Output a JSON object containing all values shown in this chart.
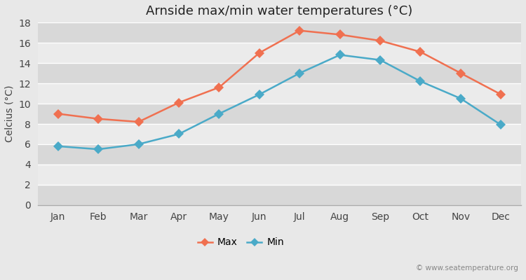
{
  "title": "Arnside max/min water temperatures (°C)",
  "ylabel": "Celcius (°C)",
  "months": [
    "Jan",
    "Feb",
    "Mar",
    "Apr",
    "May",
    "Jun",
    "Jul",
    "Aug",
    "Sep",
    "Oct",
    "Nov",
    "Dec"
  ],
  "max_values": [
    9.0,
    8.5,
    8.2,
    10.1,
    11.6,
    15.0,
    17.2,
    16.8,
    16.2,
    15.1,
    13.0,
    10.9
  ],
  "min_values": [
    5.8,
    5.5,
    6.0,
    7.0,
    9.0,
    10.9,
    13.0,
    14.8,
    14.3,
    12.2,
    10.5,
    7.9
  ],
  "max_color": "#f07050",
  "min_color": "#4aaac8",
  "marker_style": "D",
  "marker_size": 7,
  "line_width": 1.8,
  "ylim": [
    0,
    18
  ],
  "yticks": [
    0,
    2,
    4,
    6,
    8,
    10,
    12,
    14,
    16,
    18
  ],
  "bg_color": "#e8e8e8",
  "band_light": "#ebebeb",
  "band_dark": "#d8d8d8",
  "grid_color": "#ffffff",
  "legend_labels": [
    "Max",
    "Min"
  ],
  "watermark": "© www.seatemperature.org",
  "title_fontsize": 13,
  "axis_label_fontsize": 10,
  "tick_fontsize": 10,
  "legend_fontsize": 10
}
